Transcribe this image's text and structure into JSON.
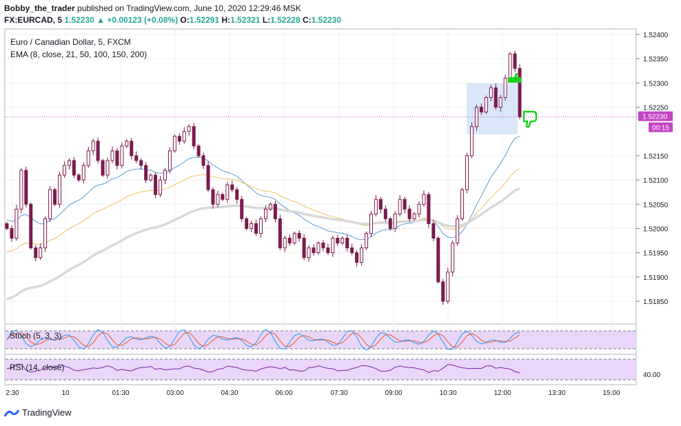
{
  "header": {
    "author": "Bobby_the_trader",
    "published_text": "published on TradingView.com, June 10, 2020 12:29:46 MSK",
    "symbol": "FX:EURCAD, 5",
    "last": "1.52230",
    "change": "+0.00123 (+0.08%)",
    "o_label": "O:",
    "o": "1.52291",
    "h_label": "H:",
    "h": "1.52321",
    "l_label": "L:",
    "l": "1.52228",
    "c_label": "C:",
    "c": "1.52230"
  },
  "legend": {
    "title": "Euro / Canadian Dollar, 5, FXCM",
    "ema": "EMA (8, close, 21, 50, 100, 150, 200)"
  },
  "stoch_label": "Stoch (5, 3, 3)",
  "rsi_label": "RSI (14, close)",
  "rsi_tick": "40.00",
  "price_badge": "1.52230",
  "countdown_badge": "00:15",
  "footer_brand": "TradingView",
  "colors": {
    "up": "#26a69a",
    "candle": "#7b1a4e",
    "ema_blue": "#5b9bd5",
    "ema_orange": "#f0c060",
    "ema_gray": "#d8d8d8",
    "badge": "#c444c4",
    "stoch_k": "#2196f3",
    "stoch_d": "#f4511e",
    "rsi_line": "#7b1fa2",
    "osc_bg": "#ead6f8",
    "thumb": "#19d219"
  },
  "chart_data": {
    "type": "candlestick",
    "y_ticks": [
      "1.52400",
      "1.52350",
      "1.52300",
      "1.52250",
      "1.52150",
      "1.52100",
      "1.52050",
      "1.52000",
      "1.51950",
      "1.51900",
      "1.51850"
    ],
    "x_ticks": [
      "2:30",
      "10",
      "01:30",
      "03:00",
      "04:30",
      "06:00",
      "07:30",
      "09:00",
      "10:30",
      "12:00",
      "13:30",
      "15:00"
    ],
    "ylim": [
      1.518,
      1.5242
    ],
    "last_price": 1.5223,
    "closes": [
      1.52,
      1.5198,
      1.5204,
      1.5212,
      1.5205,
      1.5196,
      1.5194,
      1.5196,
      1.5202,
      1.5208,
      1.5205,
      1.5211,
      1.5213,
      1.5214,
      1.5211,
      1.521,
      1.5213,
      1.5216,
      1.5218,
      1.5214,
      1.5211,
      1.5214,
      1.5216,
      1.5213,
      1.5217,
      1.5218,
      1.5215,
      1.5214,
      1.5213,
      1.521,
      1.5211,
      1.5207,
      1.521,
      1.5212,
      1.5216,
      1.5219,
      1.5218,
      1.522,
      1.5221,
      1.5217,
      1.5215,
      1.5213,
      1.5208,
      1.5205,
      1.5207,
      1.5206,
      1.5209,
      1.5208,
      1.5206,
      1.5202,
      1.52,
      1.5201,
      1.5199,
      1.5202,
      1.5204,
      1.5205,
      1.5202,
      1.5196,
      1.5198,
      1.5197,
      1.5199,
      1.5198,
      1.5194,
      1.5196,
      1.5195,
      1.5197,
      1.5196,
      1.5195,
      1.5198,
      1.5197,
      1.5198,
      1.5196,
      1.5195,
      1.5193,
      1.5196,
      1.5199,
      1.5203,
      1.5206,
      1.5204,
      1.5202,
      1.52,
      1.5203,
      1.5206,
      1.5204,
      1.5202,
      1.5203,
      1.5205,
      1.5207,
      1.5201,
      1.5198,
      1.5189,
      1.5185,
      1.5191,
      1.5197,
      1.5202,
      1.5208,
      1.5215,
      1.5221,
      1.5225,
      1.5224,
      1.5227,
      1.5229,
      1.5225,
      1.5227,
      1.5231,
      1.5236,
      1.5233,
      1.5223
    ],
    "ema_lines": [
      "blue",
      "orange",
      "gray"
    ],
    "stoch_lines": [
      "%K",
      "%D"
    ],
    "rsi_line": "RSI (14, close)"
  }
}
